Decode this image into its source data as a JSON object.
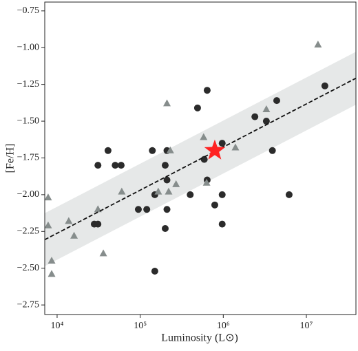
{
  "chart_data": {
    "type": "scatter",
    "x_label": "Luminosity (L⊙)",
    "y_label": "[Fe/H]",
    "xscale": "log",
    "xlim": [
      7100,
      39500000
    ],
    "ylim": [
      -2.815,
      -0.69
    ],
    "xticks": [
      {
        "value": 10000,
        "label": "10⁴"
      },
      {
        "value": 100000,
        "label": "10⁵"
      },
      {
        "value": 1000000,
        "label": "10⁶"
      },
      {
        "value": 10000000,
        "label": "10⁷"
      }
    ],
    "yticks": [
      {
        "value": -0.75,
        "label": "−0.75"
      },
      {
        "value": -1.0,
        "label": "−1.00"
      },
      {
        "value": -1.25,
        "label": "−1.25"
      },
      {
        "value": -1.5,
        "label": "−1.50"
      },
      {
        "value": -1.75,
        "label": "−1.75"
      },
      {
        "value": -2.0,
        "label": "−2.00"
      },
      {
        "value": -2.25,
        "label": "−2.25"
      },
      {
        "value": -2.5,
        "label": "−2.50"
      },
      {
        "value": -2.75,
        "label": "−2.75"
      }
    ],
    "fit": {
      "x": [
        7100,
        39500000
      ],
      "y": [
        -2.306,
        -1.208
      ],
      "band": 0.18,
      "color": "#111111",
      "band_color": "#e6e8e8"
    },
    "series": [
      {
        "marker": "circle",
        "color": "#2b2b2b",
        "x": [
          16700000,
          4400000,
          2400000,
          3300000,
          3900000,
          6200000,
          640000,
          490000,
          970000,
          590000,
          640000,
          400000,
          970000,
          790000,
          970000,
          41000,
          31000,
          50000,
          59000,
          140000,
          210000,
          200000,
          150000,
          95000,
          120000,
          210000,
          210000,
          200000,
          150000,
          28000,
          31000
        ],
        "values": [
          -1.26,
          -1.36,
          -1.47,
          -1.5,
          -1.7,
          -2.0,
          -1.29,
          -1.41,
          -1.65,
          -1.76,
          -1.9,
          -2.0,
          -2.0,
          -2.07,
          -2.2,
          -1.7,
          -1.8,
          -1.8,
          -1.8,
          -1.7,
          -1.7,
          -1.8,
          -2.0,
          -2.1,
          -2.1,
          -2.1,
          -1.9,
          -2.23,
          -2.52,
          -2.2,
          -2.2
        ]
      },
      {
        "marker": "triangle",
        "color": "#868d8c",
        "x": [
          13800000,
          210000,
          3300000,
          580000,
          1400000,
          230000,
          60000,
          165000,
          270000,
          220000,
          630000,
          7800,
          7800,
          13800,
          16000,
          31000,
          36000,
          8600,
          8600
        ],
        "values": [
          -0.98,
          -1.38,
          -1.42,
          -1.61,
          -1.68,
          -1.7,
          -1.98,
          -1.98,
          -1.93,
          -1.98,
          -1.92,
          -2.02,
          -2.21,
          -2.18,
          -2.28,
          -2.1,
          -2.4,
          -2.45,
          -2.54
        ]
      }
    ],
    "highlight": {
      "x": 790000,
      "value": -1.7,
      "color": "#ff2222"
    }
  }
}
